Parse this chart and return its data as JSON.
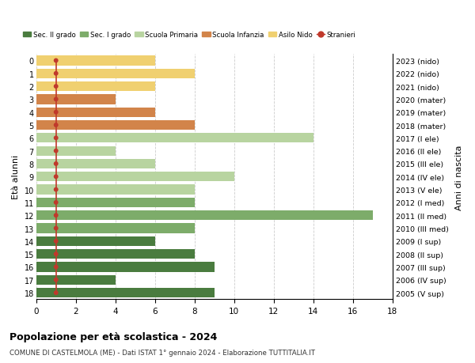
{
  "ages": [
    18,
    17,
    16,
    15,
    14,
    13,
    12,
    11,
    10,
    9,
    8,
    7,
    6,
    5,
    4,
    3,
    2,
    1,
    0
  ],
  "right_labels": [
    "2005 (V sup)",
    "2006 (IV sup)",
    "2007 (III sup)",
    "2008 (II sup)",
    "2009 (I sup)",
    "2010 (III med)",
    "2011 (II med)",
    "2012 (I med)",
    "2013 (V ele)",
    "2014 (IV ele)",
    "2015 (III ele)",
    "2016 (II ele)",
    "2017 (I ele)",
    "2018 (mater)",
    "2019 (mater)",
    "2020 (mater)",
    "2021 (nido)",
    "2022 (nido)",
    "2023 (nido)"
  ],
  "bar_values": [
    9,
    4,
    9,
    8,
    6,
    8,
    17,
    8,
    8,
    10,
    6,
    4,
    14,
    8,
    6,
    4,
    6,
    8,
    6
  ],
  "bar_colors": [
    "#4a7c3f",
    "#4a7c3f",
    "#4a7c3f",
    "#4a7c3f",
    "#4a7c3f",
    "#7dac6a",
    "#7dac6a",
    "#7dac6a",
    "#b8d4a0",
    "#b8d4a0",
    "#b8d4a0",
    "#b8d4a0",
    "#b8d4a0",
    "#d2844a",
    "#d2844a",
    "#d2844a",
    "#f0d070",
    "#f0d070",
    "#f0d070"
  ],
  "stranieri_x": [
    1,
    1,
    1,
    1,
    1,
    1,
    1,
    1,
    1,
    1,
    1,
    1,
    1,
    1,
    1,
    1,
    1,
    1,
    1
  ],
  "legend_labels": [
    "Sec. II grado",
    "Sec. I grado",
    "Scuola Primaria",
    "Scuola Infanzia",
    "Asilo Nido",
    "Stranieri"
  ],
  "legend_colors": [
    "#4a7c3f",
    "#7dac6a",
    "#b8d4a0",
    "#d2844a",
    "#f0d070",
    "#c0392b"
  ],
  "title": "Popolazione per età scolastica - 2024",
  "subtitle": "COMUNE DI CASTELMOLA (ME) - Dati ISTAT 1° gennaio 2024 - Elaborazione TUTTITALIA.IT",
  "ylabel_left": "Età alunni",
  "ylabel_right": "Anni di nascita",
  "xlim": [
    0,
    18
  ],
  "xticks": [
    0,
    2,
    4,
    6,
    8,
    10,
    12,
    14,
    16,
    18
  ],
  "stranieri_color": "#c0392b",
  "bg_color": "#ffffff",
  "grid_color": "#cccccc"
}
